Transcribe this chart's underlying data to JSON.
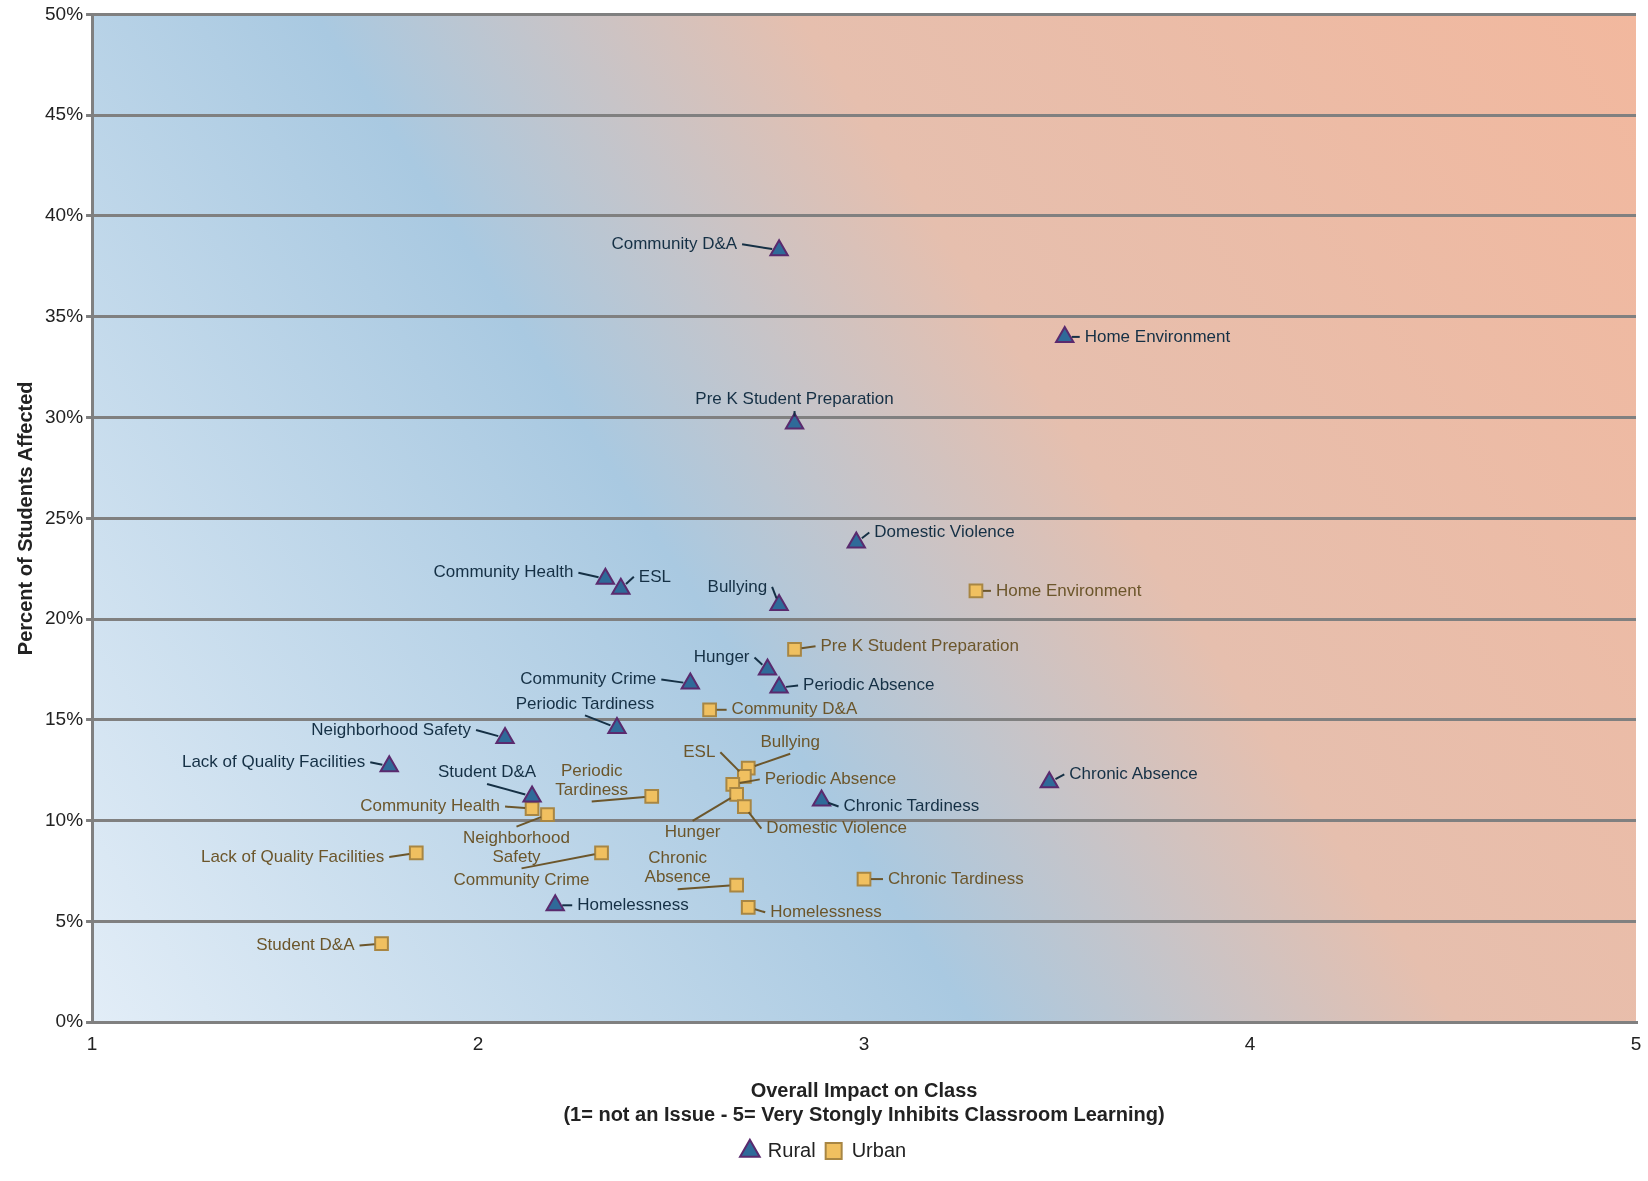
{
  "chart_data": {
    "type": "scatter",
    "xlabel": "Overall Impact on Class\n(1= not an Issue - 5= Very Stongly Inhibits Classroom Learning)",
    "ylabel": "Percent of Students Affected",
    "xlim": [
      1,
      5
    ],
    "xticks": [
      1,
      2,
      3,
      4,
      5
    ],
    "ylim": [
      0,
      50
    ],
    "yticks": [
      {
        "value": 0,
        "label": "0%"
      },
      {
        "value": 5,
        "label": "5%"
      },
      {
        "value": 10,
        "label": "10%"
      },
      {
        "value": 15,
        "label": "15%"
      },
      {
        "value": 20,
        "label": "20%"
      },
      {
        "value": 25,
        "label": "25%"
      },
      {
        "value": 30,
        "label": "30%"
      },
      {
        "value": 35,
        "label": "35%"
      },
      {
        "value": 40,
        "label": "40%"
      },
      {
        "value": 45,
        "label": "45%"
      },
      {
        "value": 50,
        "label": "50%"
      }
    ],
    "grid": "y",
    "legend": "bottom",
    "series": [
      {
        "name": "Rural",
        "color": "#2f6a99",
        "marker": "triangle",
        "x": [
          2.78,
          3.52,
          2.82,
          2.98,
          2.33,
          2.37,
          2.78,
          2.75,
          2.78,
          2.55,
          2.36,
          2.07,
          1.77,
          2.14,
          3.48,
          2.89,
          2.2
        ],
        "values": [
          38.3,
          34.0,
          29.7,
          23.8,
          22.0,
          21.5,
          20.7,
          17.5,
          16.6,
          16.8,
          14.6,
          14.1,
          12.7,
          11.2,
          11.9,
          11.0,
          5.8
        ]
      },
      {
        "name": "Urban",
        "color": "#f0c060",
        "marker": "square",
        "x": [
          3.29,
          2.82,
          2.6,
          2.7,
          2.69,
          2.66,
          2.67,
          2.69,
          2.45,
          2.14,
          2.18,
          1.84,
          2.32,
          2.67,
          3.0,
          2.7,
          1.75
        ],
        "values": [
          21.4,
          18.5,
          15.5,
          12.6,
          12.2,
          11.8,
          11.3,
          10.7,
          11.2,
          10.6,
          10.3,
          8.4,
          8.4,
          6.8,
          7.1,
          5.7,
          3.9
        ]
      }
    ],
    "annotations": [
      {
        "text": "Community D&A",
        "x": 2.78,
        "y": 38.3
      },
      {
        "text": "Home Environment",
        "x": 3.52,
        "y": 34.0
      },
      {
        "text": "Pre K Student Preparation",
        "x": 2.82,
        "y": 29.7
      },
      {
        "text": "Domestic Violence",
        "x": 2.98,
        "y": 23.8
      },
      {
        "text": "Community Health",
        "x": 2.33,
        "y": 22.0
      },
      {
        "text": "ESL",
        "x": 2.37,
        "y": 21.5
      },
      {
        "text": "Bullying",
        "x": 2.78,
        "y": 20.7
      },
      {
        "text": "Hunger",
        "x": 2.75,
        "y": 17.5
      },
      {
        "text": "Periodic Absence",
        "x": 2.78,
        "y": 16.6
      },
      {
        "text": "Community Crime",
        "x": 2.55,
        "y": 16.8
      },
      {
        "text": "Periodic Tardiness",
        "x": 2.36,
        "y": 14.6
      },
      {
        "text": "Neighborhood Safety",
        "x": 2.07,
        "y": 14.1
      },
      {
        "text": "Lack of Quality Facilities",
        "x": 1.77,
        "y": 12.7
      },
      {
        "text": "Student D&A",
        "x": 2.14,
        "y": 11.2
      },
      {
        "text": "Chronic Absence",
        "x": 3.48,
        "y": 11.9
      },
      {
        "text": "Chronic Tardiness",
        "x": 2.89,
        "y": 11.0
      },
      {
        "text": "Homelessness",
        "x": 2.2,
        "y": 5.8
      },
      {
        "text": "Home Environment",
        "x": 3.29,
        "y": 21.4
      },
      {
        "text": "Pre K Student Preparation",
        "x": 2.82,
        "y": 18.5
      },
      {
        "text": "Community D&A",
        "x": 2.6,
        "y": 15.5
      },
      {
        "text": "Bullying",
        "x": 2.7,
        "y": 12.6
      },
      {
        "text": "ESL",
        "x": 2.69,
        "y": 12.2
      },
      {
        "text": "Periodic Absence",
        "x": 2.66,
        "y": 11.8
      },
      {
        "text": "Hunger",
        "x": 2.67,
        "y": 11.3
      },
      {
        "text": "Domestic Violence",
        "x": 2.69,
        "y": 10.7
      },
      {
        "text": "Periodic Tardiness",
        "x": 2.45,
        "y": 11.2
      },
      {
        "text": "Community Health",
        "x": 2.14,
        "y": 10.6
      },
      {
        "text": "Neighborhood Safety",
        "x": 2.18,
        "y": 10.3
      },
      {
        "text": "Lack of Quality Facilities",
        "x": 1.84,
        "y": 8.4
      },
      {
        "text": "Community Crime",
        "x": 2.32,
        "y": 8.4
      },
      {
        "text": "Chronic Absence",
        "x": 2.67,
        "y": 6.8
      },
      {
        "text": "Chronic Tardiness",
        "x": 3.0,
        "y": 7.1
      },
      {
        "text": "Homelessness",
        "x": 2.7,
        "y": 5.7
      },
      {
        "text": "Student D&A",
        "x": 1.75,
        "y": 3.9
      }
    ]
  }
}
